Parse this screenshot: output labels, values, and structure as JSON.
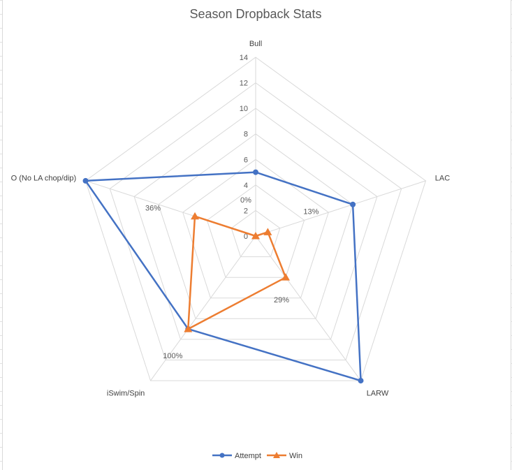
{
  "chart_data": {
    "type": "radar",
    "title": "Season Dropback Stats",
    "categories": [
      "Bull",
      "LAC",
      "LARW",
      "iSwim/Spin",
      "O (No LA chop/dip)"
    ],
    "radial_ticks": [
      "0",
      "2",
      "4",
      "6",
      "8",
      "10",
      "12",
      "14"
    ],
    "rlim": [
      0,
      14
    ],
    "grid": true,
    "legend_position": "bottom",
    "series": [
      {
        "name": "Attempt",
        "values": [
          5,
          8,
          14,
          9,
          14
        ],
        "color": "#4472c4",
        "marker": "circle"
      },
      {
        "name": "Win",
        "values": [
          0,
          1,
          4,
          9,
          5
        ],
        "color": "#ed7d31",
        "marker": "triangle"
      }
    ],
    "data_labels": [
      "0%",
      "13%",
      "29%",
      "100%",
      "36%"
    ]
  }
}
